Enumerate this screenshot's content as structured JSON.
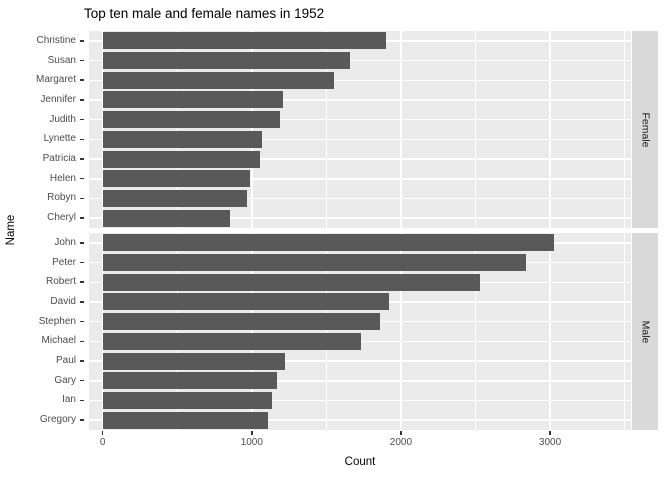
{
  "title": "Top ten male and female names in 1952",
  "axes": {
    "x_label": "Count",
    "y_label": "Name"
  },
  "colors": {
    "bar": "#595959",
    "panel_background": "#EBEBEB",
    "strip_background": "#D9D9D9",
    "gridline": "#FFFFFF",
    "axis_text": "#4D4D4D",
    "title_text": "#000000"
  },
  "chart_data": {
    "type": "bar",
    "orientation": "horizontal",
    "title": "Top ten male and female names in 1952",
    "xlabel": "Count",
    "ylabel": "Name",
    "legend": "none",
    "grid": "white major/minor gridlines on grey panel",
    "x_major_ticks": [
      0,
      1000,
      2000,
      3000
    ],
    "x_minor_gridlines": [
      500,
      1500,
      2500,
      3500
    ],
    "x_range_displayed": [
      -92,
      3543
    ],
    "facets": [
      {
        "key": "female",
        "label": "Female",
        "categories": [
          "Christine",
          "Susan",
          "Margaret",
          "Jennifer",
          "Judith",
          "Lynette",
          "Patricia",
          "Helen",
          "Robyn",
          "Cheryl"
        ],
        "values": [
          1900,
          1660,
          1550,
          1210,
          1190,
          1065,
          1055,
          990,
          970,
          855
        ]
      },
      {
        "key": "male",
        "label": "Male",
        "categories": [
          "John",
          "Peter",
          "Robert",
          "David",
          "Stephen",
          "Michael",
          "Paul",
          "Gary",
          "Ian",
          "Gregory"
        ],
        "values": [
          3030,
          2840,
          2530,
          1920,
          1860,
          1730,
          1225,
          1170,
          1135,
          1110
        ]
      }
    ]
  }
}
